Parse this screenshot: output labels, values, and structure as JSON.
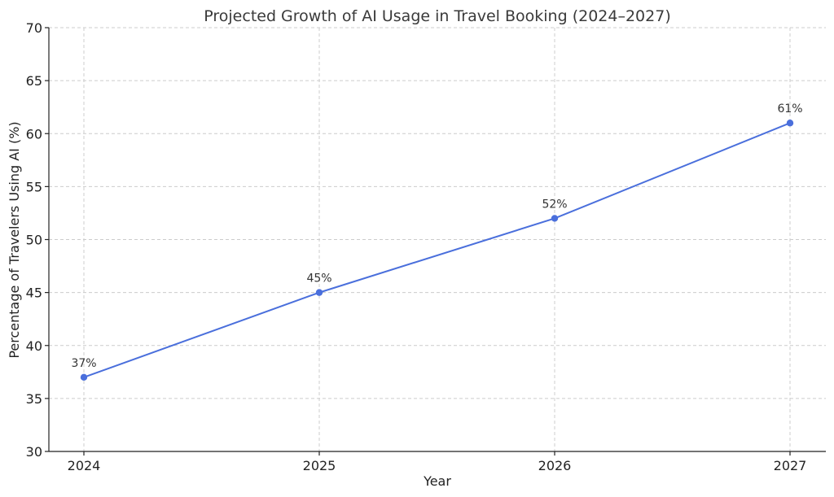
{
  "chart_data": {
    "type": "line",
    "title": "Projected Growth of AI Usage in Travel Booking (2024–2027)",
    "xlabel": "Year",
    "ylabel": "Percentage of Travelers Using AI (%)",
    "x": [
      "2024",
      "2025",
      "2026",
      "2027"
    ],
    "series": [
      {
        "values": [
          37,
          45,
          52,
          61
        ],
        "color": "#4a6fdc"
      }
    ],
    "data_labels": [
      "37%",
      "45%",
      "52%",
      "61%"
    ],
    "ylim": [
      30,
      70
    ],
    "yticks": [
      "30",
      "35",
      "40",
      "45",
      "50",
      "55",
      "60",
      "65",
      "70"
    ],
    "grid": true
  }
}
